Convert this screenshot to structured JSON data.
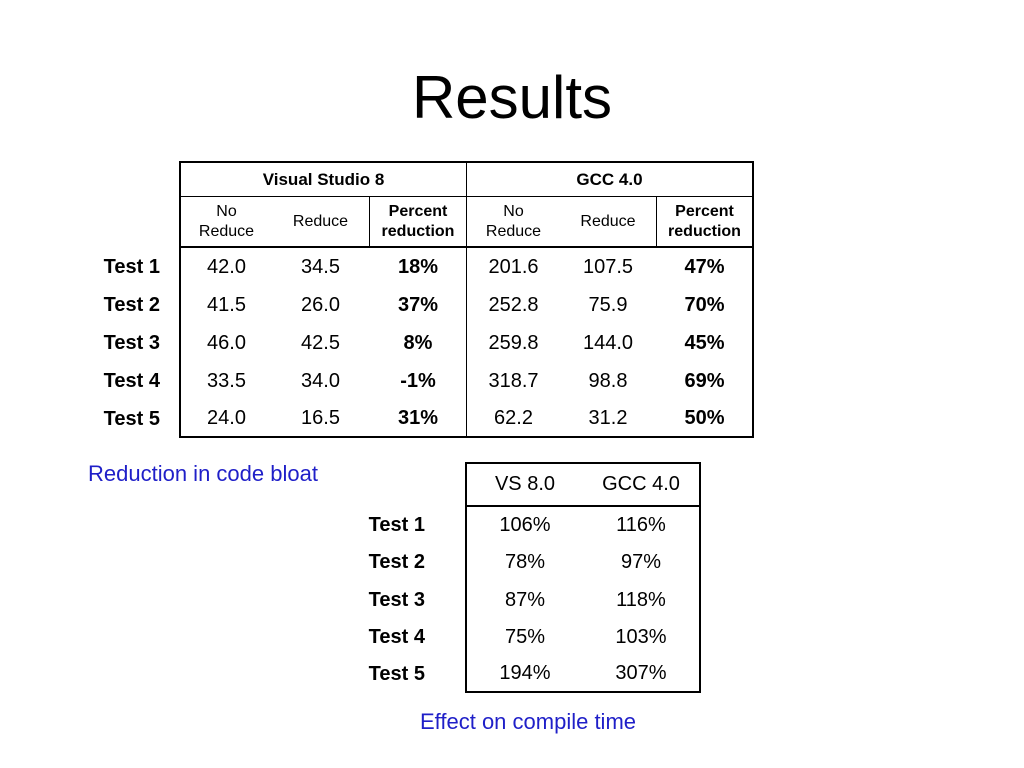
{
  "slide": {
    "title": "Results"
  },
  "table1": {
    "groups": [
      "Visual Studio 8",
      "GCC 4.0"
    ],
    "subheaders": [
      {
        "line1": "No",
        "line2": "Reduce"
      },
      {
        "line1": "Reduce",
        "line2": ""
      },
      {
        "line1": "Percent",
        "line2": "reduction"
      },
      {
        "line1": "No",
        "line2": "Reduce"
      },
      {
        "line1": "Reduce",
        "line2": ""
      },
      {
        "line1": "Percent",
        "line2": "reduction"
      }
    ],
    "rows": [
      {
        "label": "Test 1",
        "cells": [
          "42.0",
          "34.5",
          "18%",
          "201.6",
          "107.5",
          "47%"
        ]
      },
      {
        "label": "Test 2",
        "cells": [
          "41.5",
          "26.0",
          "37%",
          "252.8",
          "75.9",
          "70%"
        ]
      },
      {
        "label": "Test 3",
        "cells": [
          "46.0",
          "42.5",
          "8%",
          "259.8",
          "144.0",
          "45%"
        ]
      },
      {
        "label": "Test 4",
        "cells": [
          "33.5",
          "34.0",
          "-1%",
          "318.7",
          "98.8",
          "69%"
        ]
      },
      {
        "label": "Test 5",
        "cells": [
          "24.0",
          "16.5",
          "31%",
          "62.2",
          "31.2",
          "50%"
        ]
      }
    ],
    "caption": "Reduction in code bloat"
  },
  "table2": {
    "headers": [
      "VS 8.0",
      "GCC 4.0"
    ],
    "rows": [
      {
        "label": "Test 1",
        "cells": [
          "106%",
          "116%"
        ]
      },
      {
        "label": "Test 2",
        "cells": [
          "78%",
          "97%"
        ]
      },
      {
        "label": "Test 3",
        "cells": [
          "87%",
          "118%"
        ]
      },
      {
        "label": "Test 4",
        "cells": [
          "75%",
          "103%"
        ]
      },
      {
        "label": "Test 5",
        "cells": [
          "194%",
          "307%"
        ]
      }
    ],
    "caption": "Effect on compile time"
  },
  "colors": {
    "caption": "#1f1fc8",
    "text": "#000000",
    "background": "#ffffff"
  }
}
